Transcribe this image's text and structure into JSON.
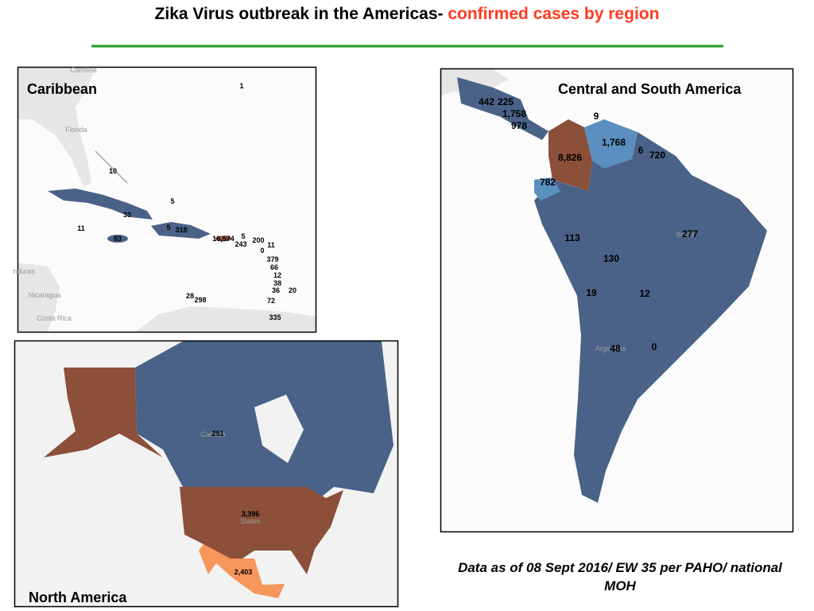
{
  "header": {
    "title": "Zika Virus outbreak in the Americas- ",
    "title_highlight": "confirmed cases by region"
  },
  "panels": [
    {
      "title": "Caribbean",
      "labels": [
        "1",
        "10",
        "5",
        "33",
        "11",
        "5",
        "318",
        "83",
        "16,574",
        "5",
        "243",
        "200",
        "11",
        "0",
        "379",
        "66",
        "12",
        "38",
        "36",
        "20",
        "28",
        "298",
        "72",
        "335"
      ],
      "basemap_labels": [
        "Carolina",
        "Florida",
        "nduras",
        "Nicaragua",
        "Costa Rica"
      ]
    },
    {
      "title": "North America",
      "labels": [
        "251",
        "3,396",
        "2,403"
      ],
      "basemap_labels": [
        "Canada",
        "States"
      ]
    },
    {
      "title": "Central and South America",
      "labels": [
        "442",
        "225",
        "1,758",
        "978",
        "9",
        "1,768",
        "6",
        "720",
        "8,826",
        "782",
        "277",
        "113",
        "130",
        "19",
        "12",
        "48",
        "0"
      ],
      "basemap_labels": [
        "Brazil",
        "Argentina"
      ]
    }
  ],
  "footnote": "Data as of 08 Sept 2016/ EW 35 per PAHO/ national MOH"
}
